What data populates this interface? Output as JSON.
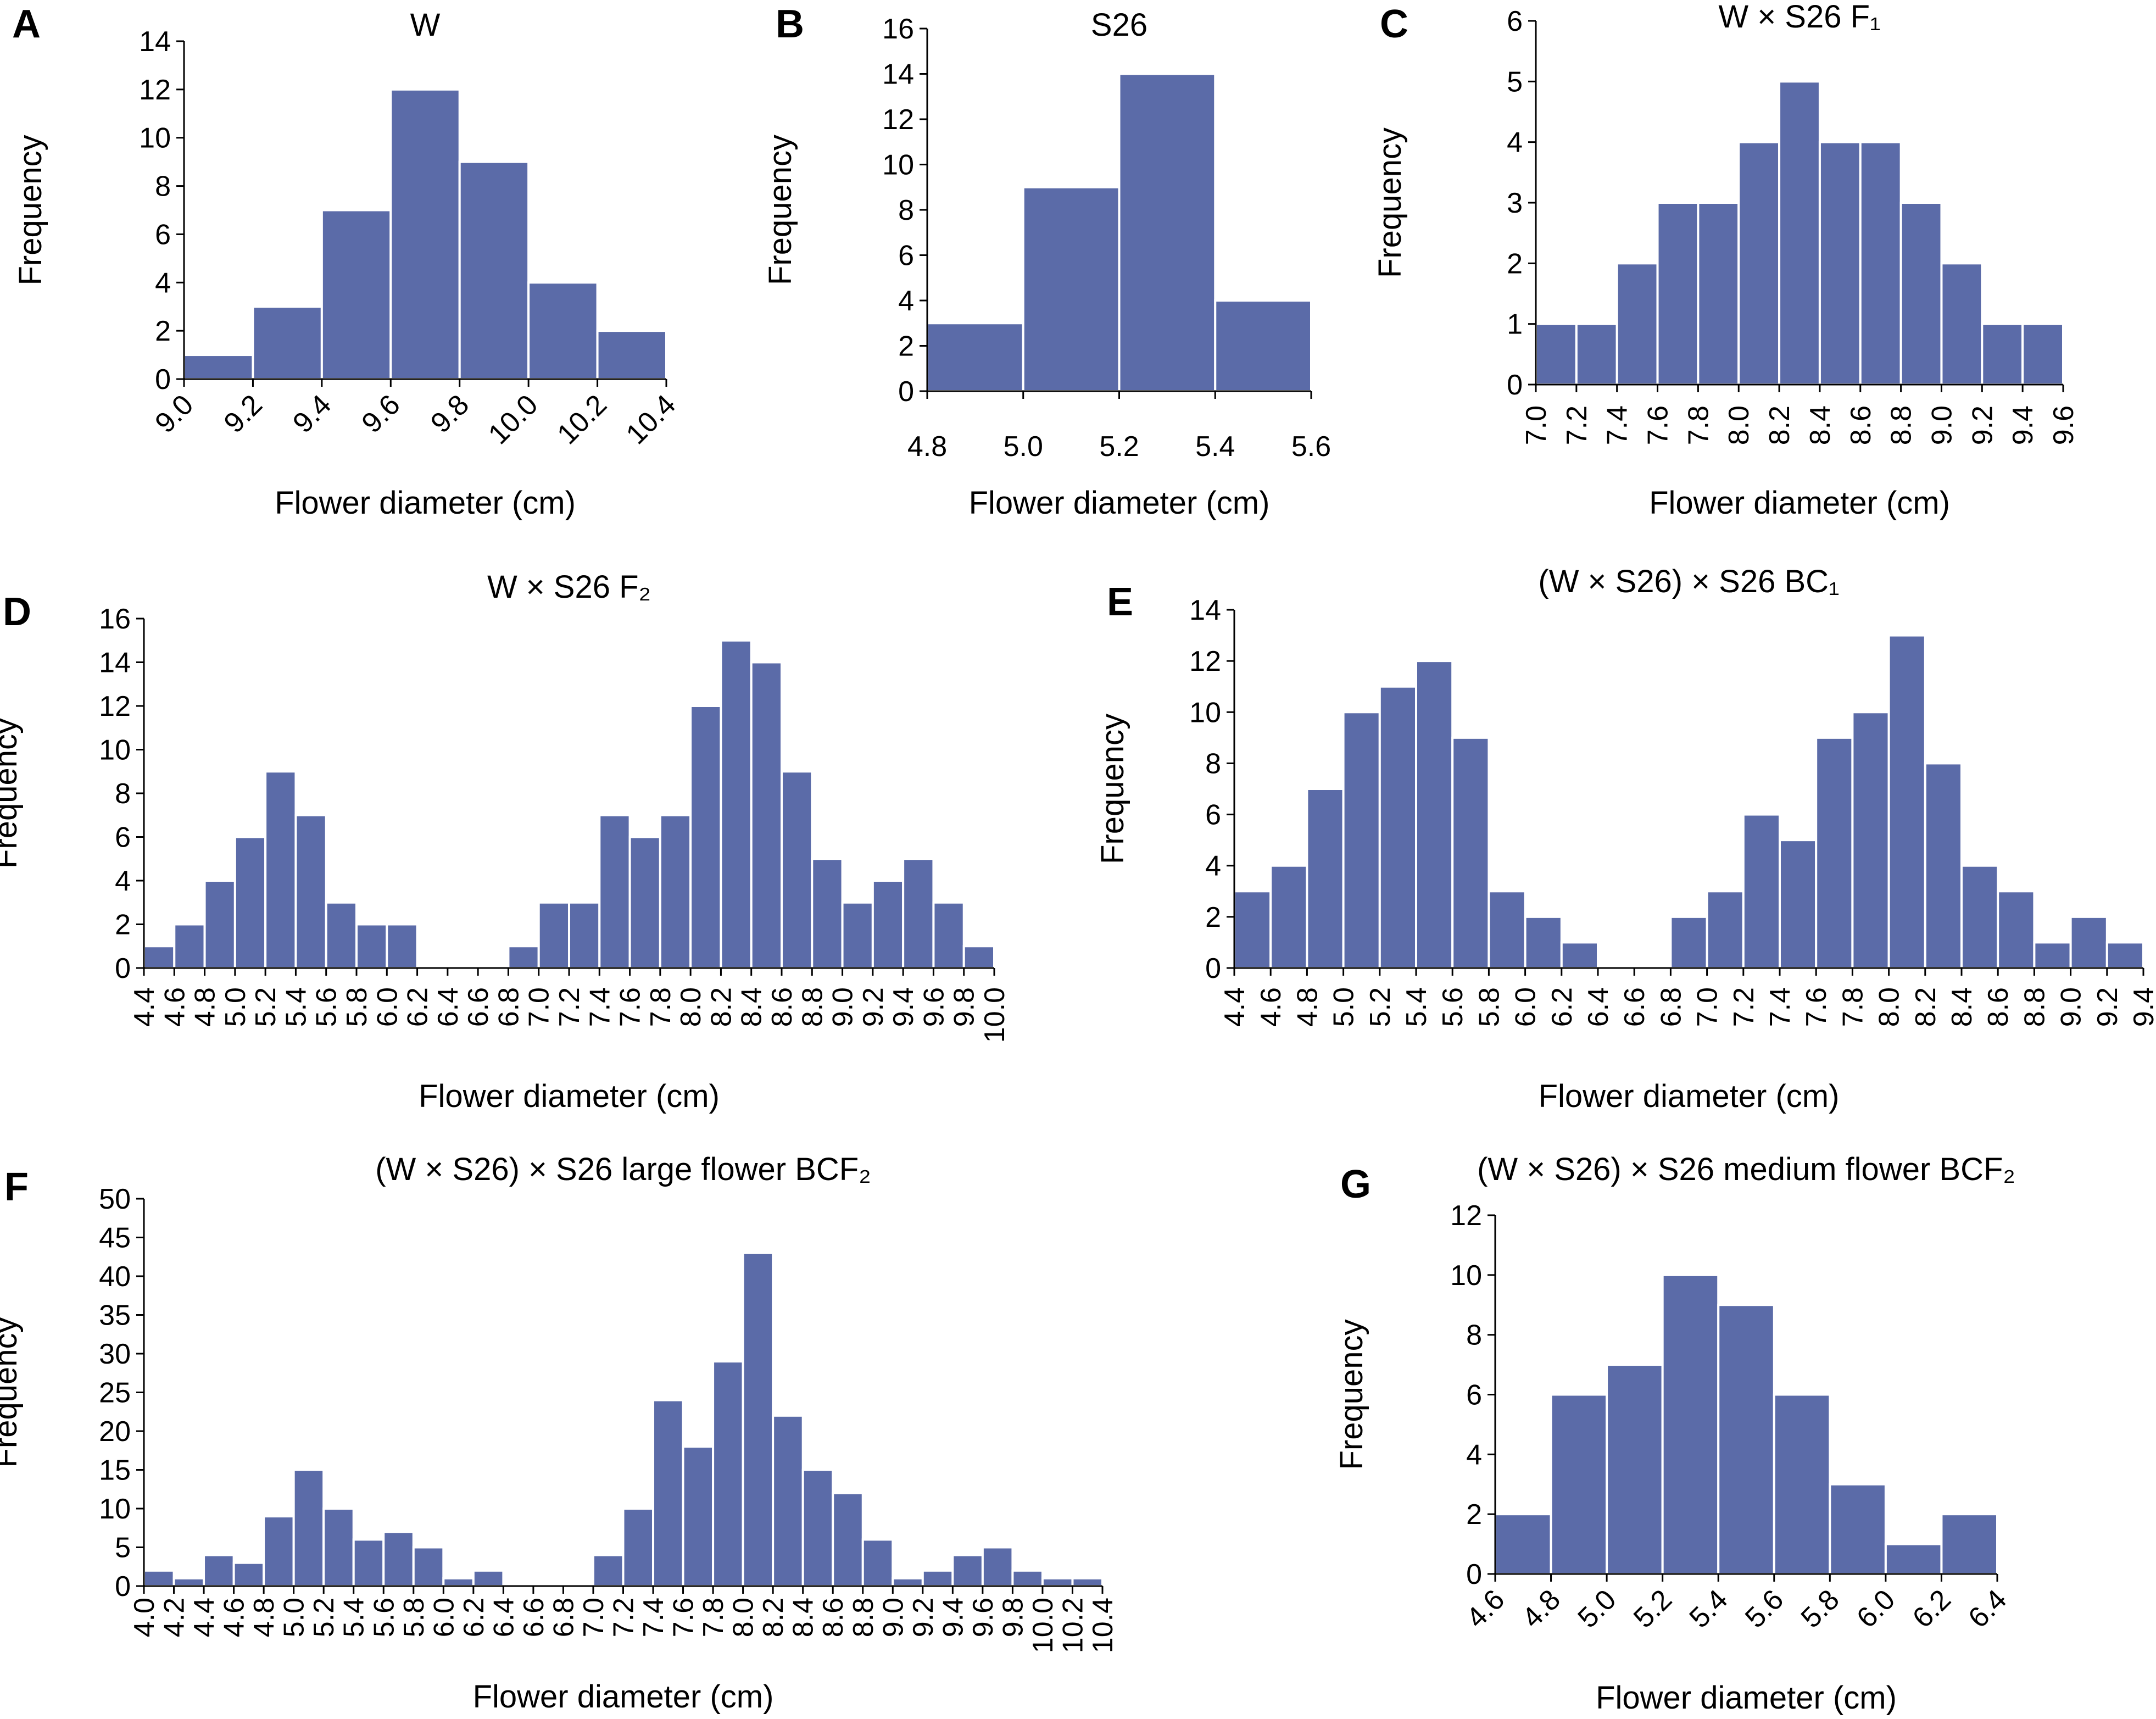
{
  "colors": {
    "bar": "#5b6ba8",
    "bar_edge": "#ffffff",
    "axis": "#000000"
  },
  "chart_data": [
    {
      "type": "bar",
      "panel": "A",
      "title": "W",
      "xlabel": "Flower diameter (cm)",
      "ylabel": "Frequency",
      "x_ticks": [
        "9.0",
        "9.2",
        "9.4",
        "9.6",
        "9.8",
        "10.0",
        "10.2",
        "10.4"
      ],
      "y_ticks": [
        "0",
        "2",
        "4",
        "6",
        "8",
        "10",
        "12",
        "14"
      ],
      "ylim": [
        0,
        14
      ],
      "bins": [
        [
          9.0,
          9.2
        ],
        [
          9.2,
          9.4
        ],
        [
          9.4,
          9.6
        ],
        [
          9.6,
          9.8
        ],
        [
          9.8,
          10.0
        ],
        [
          10.0,
          10.2
        ],
        [
          10.2,
          10.4
        ]
      ],
      "values": [
        1,
        3,
        7,
        12,
        9,
        4,
        2
      ]
    },
    {
      "type": "bar",
      "panel": "B",
      "title": "S26",
      "xlabel": "Flower diameter (cm)",
      "ylabel": "Frequency",
      "x_ticks": [
        "4.8",
        "5.0",
        "5.2",
        "5.4",
        "5.6"
      ],
      "y_ticks": [
        "0",
        "2",
        "4",
        "6",
        "8",
        "10",
        "12",
        "14",
        "16"
      ],
      "ylim": [
        0,
        16
      ],
      "bins": [
        [
          4.8,
          5.0
        ],
        [
          5.0,
          5.2
        ],
        [
          5.2,
          5.4
        ],
        [
          5.4,
          5.6
        ]
      ],
      "values": [
        3,
        9,
        14,
        4
      ]
    },
    {
      "type": "bar",
      "panel": "C",
      "title": "W × S26  F₁",
      "xlabel": "Flower diameter (cm)",
      "ylabel": "Frequency",
      "x_ticks": [
        "7.0",
        "7.2",
        "7.4",
        "7.6",
        "7.8",
        "8.0",
        "8.2",
        "8.4",
        "8.6",
        "8.8",
        "9.0",
        "9.2",
        "9.4",
        "9.6"
      ],
      "y_ticks": [
        "0",
        "1",
        "2",
        "3",
        "4",
        "5",
        "6"
      ],
      "ylim": [
        0,
        6
      ],
      "bins": [
        [
          7.0,
          7.2
        ],
        [
          7.2,
          7.4
        ],
        [
          7.4,
          7.6
        ],
        [
          7.6,
          7.8
        ],
        [
          7.8,
          8.0
        ],
        [
          8.0,
          8.2
        ],
        [
          8.2,
          8.4
        ],
        [
          8.4,
          8.6
        ],
        [
          8.6,
          8.8
        ],
        [
          8.8,
          9.0
        ],
        [
          9.0,
          9.2
        ],
        [
          9.2,
          9.4
        ],
        [
          9.4,
          9.6
        ]
      ],
      "values": [
        1,
        1,
        2,
        3,
        3,
        4,
        5,
        4,
        4,
        3,
        2,
        1,
        1
      ]
    },
    {
      "type": "bar",
      "panel": "D",
      "title": "W × S26 F₂",
      "xlabel": "Flower diameter (cm)",
      "ylabel": "Frequency",
      "x_ticks": [
        "4.4",
        "4.6",
        "4.8",
        "5.0",
        "5.2",
        "5.4",
        "5.6",
        "5.8",
        "6.0",
        "6.2",
        "6.4",
        "6.6",
        "6.8",
        "7.0",
        "7.2",
        "7.4",
        "7.6",
        "7.8",
        "8.0",
        "8.2",
        "8.4",
        "8.6",
        "8.8",
        "9.0",
        "9.2",
        "9.4",
        "9.6",
        "9.8",
        "10.0"
      ],
      "y_ticks": [
        "0",
        "2",
        "4",
        "6",
        "8",
        "10",
        "12",
        "14",
        "16"
      ],
      "ylim": [
        0,
        16
      ],
      "bins": [
        [
          4.4,
          4.6
        ],
        [
          4.6,
          4.8
        ],
        [
          4.8,
          5.0
        ],
        [
          5.0,
          5.2
        ],
        [
          5.2,
          5.4
        ],
        [
          5.4,
          5.6
        ],
        [
          5.6,
          5.8
        ],
        [
          5.8,
          6.0
        ],
        [
          6.0,
          6.2
        ],
        [
          6.2,
          6.4
        ],
        [
          6.4,
          6.6
        ],
        [
          6.6,
          6.8
        ],
        [
          6.8,
          7.0
        ],
        [
          7.0,
          7.2
        ],
        [
          7.2,
          7.4
        ],
        [
          7.4,
          7.6
        ],
        [
          7.6,
          7.8
        ],
        [
          7.8,
          8.0
        ],
        [
          8.0,
          8.2
        ],
        [
          8.2,
          8.4
        ],
        [
          8.4,
          8.6
        ],
        [
          8.6,
          8.8
        ],
        [
          8.8,
          9.0
        ],
        [
          9.0,
          9.2
        ],
        [
          9.2,
          9.4
        ],
        [
          9.4,
          9.6
        ],
        [
          9.6,
          9.8
        ],
        [
          9.8,
          10.0
        ]
      ],
      "values": [
        1,
        2,
        4,
        6,
        9,
        7,
        3,
        2,
        2,
        0,
        0,
        0,
        1,
        3,
        3,
        7,
        6,
        7,
        12,
        15,
        14,
        9,
        5,
        3,
        4,
        5,
        3,
        1
      ]
    },
    {
      "type": "bar",
      "panel": "E",
      "title": "(W × S26) × S26 BC₁",
      "xlabel": "Flower diameter (cm)",
      "ylabel": "Frequency",
      "x_ticks": [
        "4.4",
        "4.6",
        "4.8",
        "5.0",
        "5.2",
        "5.4",
        "5.6",
        "5.8",
        "6.0",
        "6.2",
        "6.4",
        "6.6",
        "6.8",
        "7.0",
        "7.2",
        "7.4",
        "7.6",
        "7.8",
        "8.0",
        "8.2",
        "8.4",
        "8.6",
        "8.8",
        "9.0",
        "9.2",
        "9.4"
      ],
      "y_ticks": [
        "0",
        "2",
        "4",
        "6",
        "8",
        "10",
        "12",
        "14"
      ],
      "ylim": [
        0,
        14
      ],
      "bins": [
        [
          4.4,
          4.6
        ],
        [
          4.6,
          4.8
        ],
        [
          4.8,
          5.0
        ],
        [
          5.0,
          5.2
        ],
        [
          5.2,
          5.4
        ],
        [
          5.4,
          5.6
        ],
        [
          5.6,
          5.8
        ],
        [
          5.8,
          6.0
        ],
        [
          6.0,
          6.2
        ],
        [
          6.2,
          6.4
        ],
        [
          6.4,
          6.6
        ],
        [
          6.6,
          6.8
        ],
        [
          6.8,
          7.0
        ],
        [
          7.0,
          7.2
        ],
        [
          7.2,
          7.4
        ],
        [
          7.4,
          7.6
        ],
        [
          7.6,
          7.8
        ],
        [
          7.8,
          8.0
        ],
        [
          8.0,
          8.2
        ],
        [
          8.2,
          8.4
        ],
        [
          8.4,
          8.6
        ],
        [
          8.6,
          8.8
        ],
        [
          8.8,
          9.0
        ],
        [
          9.0,
          9.2
        ],
        [
          9.2,
          9.4
        ]
      ],
      "values": [
        3,
        4,
        7,
        10,
        11,
        12,
        9,
        3,
        2,
        1,
        0,
        0,
        2,
        3,
        6,
        5,
        9,
        10,
        13,
        8,
        4,
        3,
        1,
        2,
        1
      ]
    },
    {
      "type": "bar",
      "panel": "F",
      "title": "(W × S26) × S26 large flower BCF₂",
      "xlabel": "Flower diameter (cm)",
      "ylabel": "Frequency",
      "x_ticks": [
        "4.0",
        "4.2",
        "4.4",
        "4.6",
        "4.8",
        "5.0",
        "5.2",
        "5.4",
        "5.6",
        "5.8",
        "6.0",
        "6.2",
        "6.4",
        "6.6",
        "6.8",
        "7.0",
        "7.2",
        "7.4",
        "7.6",
        "7.8",
        "8.0",
        "8.2",
        "8.4",
        "8.6",
        "8.8",
        "9.0",
        "9.2",
        "9.4",
        "9.6",
        "9.8",
        "10.0",
        "10.2",
        "10.4"
      ],
      "y_ticks": [
        "0",
        "5",
        "10",
        "15",
        "20",
        "25",
        "30",
        "35",
        "40",
        "45",
        "50"
      ],
      "ylim": [
        0,
        50
      ],
      "bins": [
        [
          4.0,
          4.2
        ],
        [
          4.2,
          4.4
        ],
        [
          4.4,
          4.6
        ],
        [
          4.6,
          4.8
        ],
        [
          4.8,
          5.0
        ],
        [
          5.0,
          5.2
        ],
        [
          5.2,
          5.4
        ],
        [
          5.4,
          5.6
        ],
        [
          5.6,
          5.8
        ],
        [
          5.8,
          6.0
        ],
        [
          6.0,
          6.2
        ],
        [
          6.2,
          6.4
        ],
        [
          6.4,
          6.6
        ],
        [
          6.6,
          6.8
        ],
        [
          6.8,
          7.0
        ],
        [
          7.0,
          7.2
        ],
        [
          7.2,
          7.4
        ],
        [
          7.4,
          7.6
        ],
        [
          7.6,
          7.8
        ],
        [
          7.8,
          8.0
        ],
        [
          8.0,
          8.2
        ],
        [
          8.2,
          8.4
        ],
        [
          8.4,
          8.6
        ],
        [
          8.6,
          8.8
        ],
        [
          8.8,
          9.0
        ],
        [
          9.0,
          9.2
        ],
        [
          9.2,
          9.4
        ],
        [
          9.4,
          9.6
        ],
        [
          9.6,
          9.8
        ],
        [
          9.8,
          10.0
        ],
        [
          10.0,
          10.2
        ],
        [
          10.2,
          10.4
        ]
      ],
      "values": [
        2,
        1,
        4,
        3,
        9,
        15,
        10,
        6,
        7,
        5,
        1,
        2,
        0,
        0,
        0,
        4,
        10,
        24,
        18,
        29,
        43,
        22,
        15,
        12,
        6,
        1,
        2,
        4,
        5,
        2,
        1,
        1
      ]
    },
    {
      "type": "bar",
      "panel": "G",
      "title": "(W × S26) × S26 medium flower BCF₂",
      "xlabel": "Flower diameter (cm)",
      "ylabel": "Frequency",
      "x_ticks": [
        "4.6",
        "4.8",
        "5.0",
        "5.2",
        "5.4",
        "5.6",
        "5.8",
        "6.0",
        "6.2",
        "6.4"
      ],
      "y_ticks": [
        "0",
        "2",
        "4",
        "6",
        "8",
        "10",
        "12"
      ],
      "ylim": [
        0,
        12
      ],
      "bins": [
        [
          4.6,
          4.8
        ],
        [
          4.8,
          5.0
        ],
        [
          5.0,
          5.2
        ],
        [
          5.2,
          5.4
        ],
        [
          5.4,
          5.6
        ],
        [
          5.6,
          5.8
        ],
        [
          5.8,
          6.0
        ],
        [
          6.0,
          6.2
        ],
        [
          6.2,
          6.4
        ]
      ],
      "values": [
        2,
        6,
        7,
        10,
        9,
        6,
        3,
        1,
        2
      ]
    }
  ]
}
